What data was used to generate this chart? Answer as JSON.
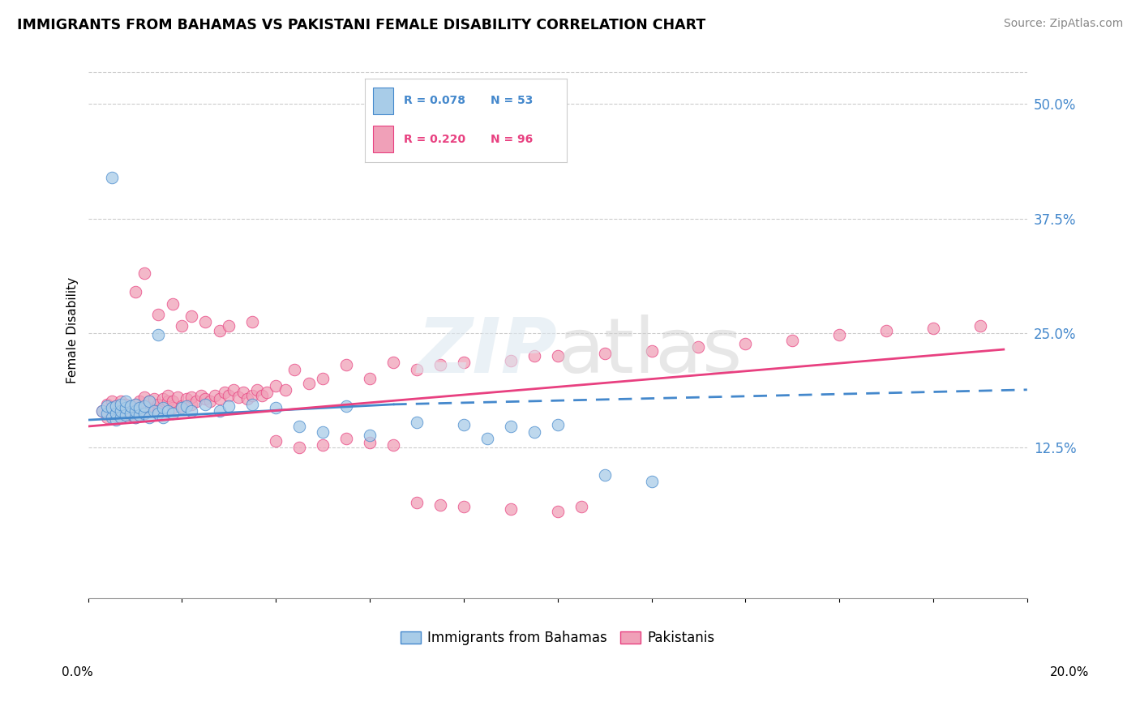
{
  "title": "IMMIGRANTS FROM BAHAMAS VS PAKISTANI FEMALE DISABILITY CORRELATION CHART",
  "source": "Source: ZipAtlas.com",
  "ylabel": "Female Disability",
  "y_tick_labels": [
    "12.5%",
    "25.0%",
    "37.5%",
    "50.0%"
  ],
  "y_tick_values": [
    0.125,
    0.25,
    0.375,
    0.5
  ],
  "xmin": 0.0,
  "xmax": 0.2,
  "ymin": -0.04,
  "ymax": 0.545,
  "color_blue": "#a8cce8",
  "color_pink": "#f0a0b8",
  "color_blue_line": "#4488cc",
  "color_pink_line": "#e84080",
  "blue_x": [
    0.005,
    0.003,
    0.004,
    0.004,
    0.005,
    0.005,
    0.006,
    0.006,
    0.006,
    0.007,
    0.007,
    0.007,
    0.008,
    0.008,
    0.008,
    0.009,
    0.009,
    0.01,
    0.01,
    0.01,
    0.011,
    0.011,
    0.012,
    0.012,
    0.013,
    0.013,
    0.014,
    0.015,
    0.015,
    0.016,
    0.016,
    0.017,
    0.018,
    0.02,
    0.021,
    0.022,
    0.025,
    0.028,
    0.03,
    0.035,
    0.04,
    0.045,
    0.05,
    0.055,
    0.06,
    0.07,
    0.08,
    0.085,
    0.09,
    0.095,
    0.1,
    0.11,
    0.12
  ],
  "blue_y": [
    0.42,
    0.165,
    0.162,
    0.17,
    0.158,
    0.168,
    0.155,
    0.162,
    0.17,
    0.158,
    0.165,
    0.172,
    0.16,
    0.168,
    0.175,
    0.162,
    0.17,
    0.158,
    0.165,
    0.172,
    0.16,
    0.168,
    0.162,
    0.17,
    0.158,
    0.175,
    0.165,
    0.162,
    0.248,
    0.158,
    0.168,
    0.165,
    0.162,
    0.168,
    0.17,
    0.165,
    0.172,
    0.165,
    0.17,
    0.172,
    0.168,
    0.148,
    0.142,
    0.17,
    0.138,
    0.152,
    0.15,
    0.135,
    0.148,
    0.142,
    0.15,
    0.095,
    0.088
  ],
  "pink_x": [
    0.003,
    0.004,
    0.004,
    0.005,
    0.005,
    0.006,
    0.006,
    0.007,
    0.007,
    0.008,
    0.008,
    0.009,
    0.009,
    0.01,
    0.01,
    0.011,
    0.011,
    0.012,
    0.012,
    0.013,
    0.013,
    0.014,
    0.014,
    0.015,
    0.015,
    0.016,
    0.017,
    0.017,
    0.018,
    0.018,
    0.019,
    0.02,
    0.021,
    0.022,
    0.022,
    0.023,
    0.024,
    0.025,
    0.026,
    0.027,
    0.028,
    0.029,
    0.03,
    0.031,
    0.032,
    0.033,
    0.034,
    0.035,
    0.036,
    0.037,
    0.038,
    0.04,
    0.042,
    0.044,
    0.047,
    0.05,
    0.055,
    0.06,
    0.065,
    0.07,
    0.075,
    0.08,
    0.09,
    0.095,
    0.1,
    0.11,
    0.12,
    0.13,
    0.14,
    0.15,
    0.16,
    0.17,
    0.18,
    0.19,
    0.01,
    0.012,
    0.015,
    0.018,
    0.02,
    0.022,
    0.025,
    0.028,
    0.03,
    0.035,
    0.04,
    0.045,
    0.05,
    0.055,
    0.06,
    0.065,
    0.07,
    0.075,
    0.08,
    0.09,
    0.1,
    0.105
  ],
  "pink_y": [
    0.165,
    0.158,
    0.172,
    0.16,
    0.175,
    0.162,
    0.17,
    0.158,
    0.175,
    0.165,
    0.172,
    0.16,
    0.168,
    0.158,
    0.172,
    0.165,
    0.175,
    0.162,
    0.18,
    0.168,
    0.175,
    0.165,
    0.178,
    0.172,
    0.165,
    0.178,
    0.175,
    0.182,
    0.168,
    0.175,
    0.18,
    0.17,
    0.178,
    0.172,
    0.18,
    0.175,
    0.182,
    0.178,
    0.175,
    0.182,
    0.178,
    0.185,
    0.182,
    0.188,
    0.18,
    0.185,
    0.178,
    0.182,
    0.188,
    0.182,
    0.185,
    0.192,
    0.188,
    0.21,
    0.195,
    0.2,
    0.215,
    0.2,
    0.218,
    0.21,
    0.215,
    0.218,
    0.22,
    0.225,
    0.225,
    0.228,
    0.23,
    0.235,
    0.238,
    0.242,
    0.248,
    0.252,
    0.255,
    0.258,
    0.295,
    0.315,
    0.27,
    0.282,
    0.258,
    0.268,
    0.262,
    0.252,
    0.258,
    0.262,
    0.132,
    0.125,
    0.128,
    0.135,
    0.13,
    0.128,
    0.065,
    0.062,
    0.06,
    0.058,
    0.055,
    0.06
  ]
}
